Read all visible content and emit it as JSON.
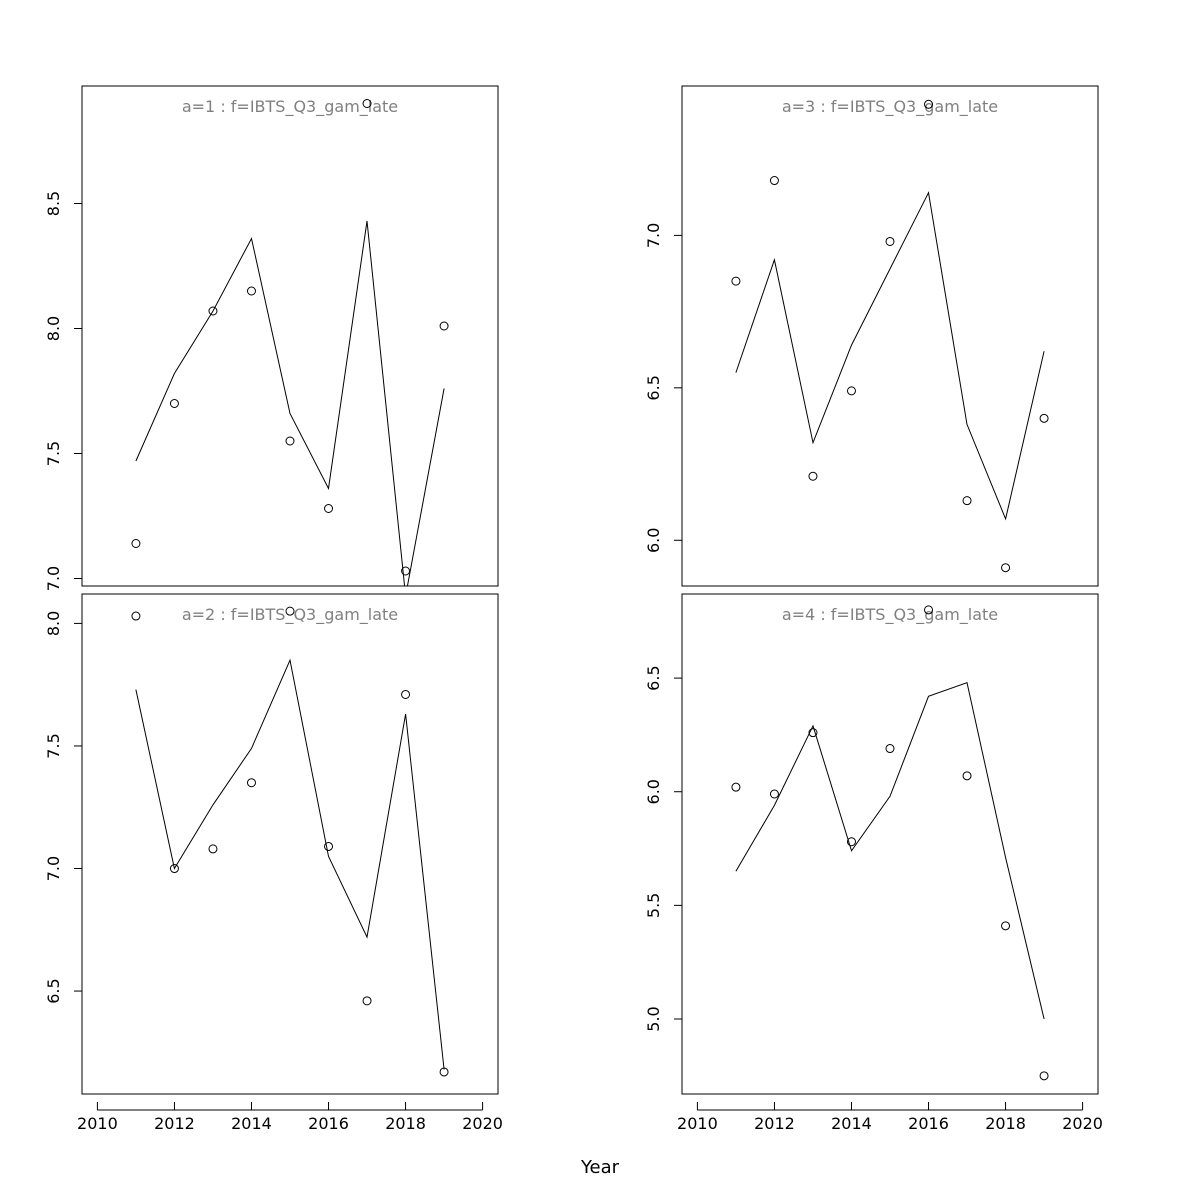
{
  "chart_data": {
    "type": "line",
    "xlabel": "Year",
    "ylabel": "",
    "grid": false,
    "colors": {
      "line": "#000000",
      "points": "#000000",
      "title": "#808080",
      "frame": "#000000"
    },
    "x_ticks": [
      2010,
      2012,
      2014,
      2016,
      2018,
      2020
    ],
    "xlim": [
      2009.6,
      2020.4
    ],
    "panels": [
      {
        "title": "a=1  :  f=IBTS_Q3_gam_late",
        "ylim": [
          6.97,
          8.97
        ],
        "y_ticks": [
          7.0,
          7.5,
          8.0,
          8.5
        ],
        "y_tick_labels": [
          "7.0",
          "7.5",
          "8.0",
          "8.5"
        ],
        "x": [
          2011,
          2012,
          2013,
          2014,
          2015,
          2016,
          2017,
          2018,
          2019
        ],
        "points": [
          7.14,
          7.7,
          8.07,
          8.15,
          7.55,
          7.28,
          8.9,
          7.03,
          8.01
        ],
        "line": [
          7.47,
          7.82,
          8.07,
          8.36,
          7.66,
          7.36,
          8.43,
          6.93,
          7.76
        ]
      },
      {
        "title": "a=3  :  f=IBTS_Q3_gam_late",
        "ylim": [
          5.85,
          7.49
        ],
        "y_ticks": [
          6.0,
          6.5,
          7.0
        ],
        "y_tick_labels": [
          "6.0",
          "6.5",
          "7.0"
        ],
        "x": [
          2011,
          2012,
          2013,
          2014,
          2015,
          2016,
          2017,
          2018,
          2019
        ],
        "points": [
          6.85,
          7.18,
          6.21,
          6.49,
          6.98,
          7.43,
          6.13,
          5.91,
          6.4
        ],
        "line": [
          6.55,
          6.92,
          6.32,
          6.64,
          6.89,
          7.14,
          6.38,
          6.07,
          6.62
        ]
      },
      {
        "title": "a=2  :  f=IBTS_Q3_gam_late",
        "ylim": [
          6.08,
          8.12
        ],
        "y_ticks": [
          6.5,
          7.0,
          7.5,
          8.0
        ],
        "y_tick_labels": [
          "6.5",
          "7.0",
          "7.5",
          "8.0"
        ],
        "x": [
          2011,
          2012,
          2013,
          2014,
          2015,
          2016,
          2017,
          2018,
          2019
        ],
        "points": [
          8.03,
          7.0,
          7.08,
          7.35,
          8.05,
          7.09,
          6.46,
          7.71,
          6.17
        ],
        "line": [
          7.73,
          7.0,
          7.26,
          7.49,
          7.85,
          7.05,
          6.72,
          7.63,
          6.18
        ]
      },
      {
        "title": "a=4  :  f=IBTS_Q3_gam_late",
        "ylim": [
          4.67,
          6.87
        ],
        "y_ticks": [
          5.0,
          5.5,
          6.0,
          6.5
        ],
        "y_tick_labels": [
          "5.0",
          "5.5",
          "6.0",
          "6.5"
        ],
        "x": [
          2011,
          2012,
          2013,
          2014,
          2015,
          2016,
          2017,
          2018,
          2019
        ],
        "points": [
          6.02,
          5.99,
          6.26,
          5.78,
          6.19,
          6.8,
          6.07,
          5.41,
          4.75
        ],
        "line": [
          5.65,
          5.94,
          6.29,
          5.74,
          5.98,
          6.42,
          6.48,
          5.71,
          5.0
        ]
      }
    ]
  }
}
